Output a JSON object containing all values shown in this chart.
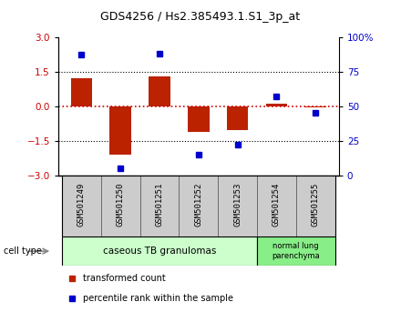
{
  "title": "GDS4256 / Hs2.385493.1.S1_3p_at",
  "samples": [
    "GSM501249",
    "GSM501250",
    "GSM501251",
    "GSM501252",
    "GSM501253",
    "GSM501254",
    "GSM501255"
  ],
  "bar_values": [
    1.2,
    -2.1,
    1.3,
    -1.1,
    -1.05,
    0.1,
    -0.05
  ],
  "scatter_values": [
    87,
    5,
    88,
    15,
    22,
    57,
    45
  ],
  "ylim_left": [
    -3,
    3
  ],
  "ylim_right": [
    0,
    100
  ],
  "yticks_left": [
    -3,
    -1.5,
    0,
    1.5,
    3
  ],
  "yticks_right": [
    0,
    25,
    50,
    75,
    100
  ],
  "ytick_labels_right": [
    "0",
    "25",
    "50",
    "75",
    "100%"
  ],
  "bar_color": "#bb2200",
  "scatter_color": "#0000cc",
  "hline_color": "#cc0000",
  "dotted_color": "#000000",
  "group1_label": "caseous TB granulomas",
  "group2_label": "normal lung\nparenchyma",
  "group1_bg": "#ccffcc",
  "group2_bg": "#88ee88",
  "xlabel_area_bg": "#cccccc",
  "legend_red_label": "transformed count",
  "legend_blue_label": "percentile rank within the sample",
  "cell_type_label": "cell type",
  "title_fontsize": 9,
  "tick_fontsize": 7.5,
  "label_fontsize": 6.5,
  "group_fontsize": 7.5,
  "legend_fontsize": 7
}
